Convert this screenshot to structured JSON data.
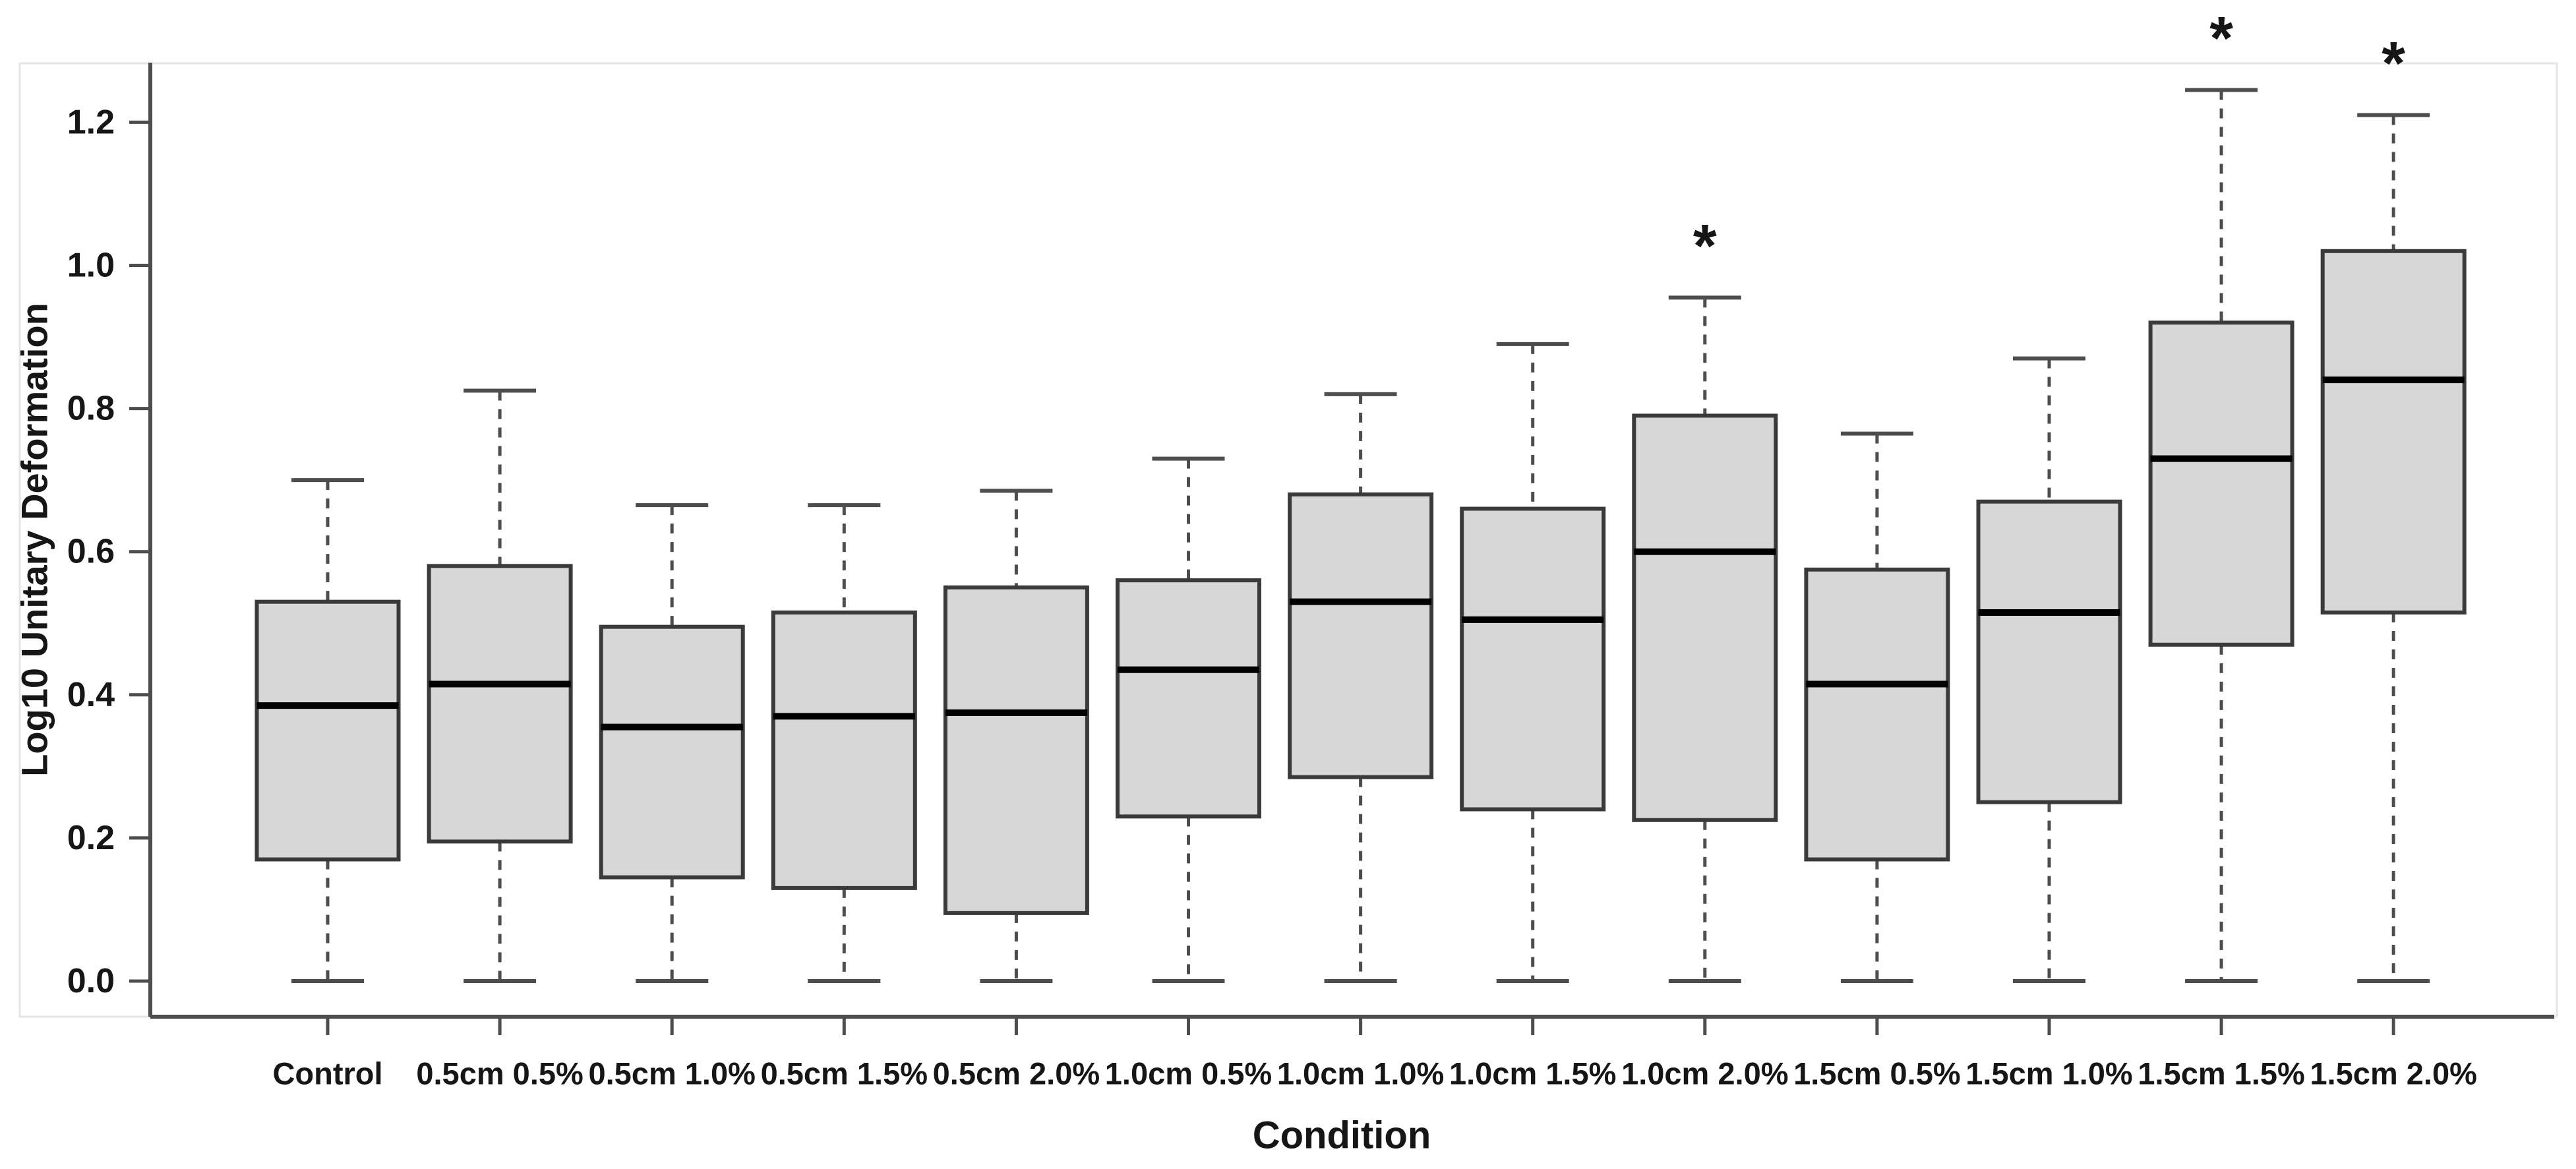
{
  "figure": {
    "background": "#ffffff"
  },
  "chart_data": {
    "type": "box",
    "title": "",
    "xlabel": "Condition",
    "ylabel": "Log10 Unitary Deformation",
    "ylim": [
      -0.05,
      1.29
    ],
    "yticks": [
      0.0,
      0.2,
      0.4,
      0.6,
      0.8,
      1.0,
      1.2
    ],
    "ytick_labels": [
      "0.0",
      "0.2",
      "0.4",
      "0.6",
      "0.8",
      "1.0",
      "1.2"
    ],
    "grid": false,
    "legend_position": "none",
    "significance_marker": "*",
    "categories": [
      "Control",
      "0.5cm 0.5%",
      "0.5cm 1.0%",
      "0.5cm 1.5%",
      "0.5cm 2.0%",
      "1.0cm 0.5%",
      "1.0cm 1.0%",
      "1.0cm 1.5%",
      "1.0cm 2.0%",
      "1.5cm 0.5%",
      "1.5cm 1.0%",
      "1.5cm 1.5%",
      "1.5cm 2.0%"
    ],
    "series": [
      {
        "name": "Control",
        "min": 0.0,
        "q1": 0.17,
        "median": 0.385,
        "q3": 0.53,
        "max": 0.7,
        "significant": false
      },
      {
        "name": "0.5cm 0.5%",
        "min": 0.0,
        "q1": 0.195,
        "median": 0.415,
        "q3": 0.58,
        "max": 0.825,
        "significant": false
      },
      {
        "name": "0.5cm 1.0%",
        "min": 0.0,
        "q1": 0.145,
        "median": 0.355,
        "q3": 0.495,
        "max": 0.665,
        "significant": false
      },
      {
        "name": "0.5cm 1.5%",
        "min": 0.0,
        "q1": 0.13,
        "median": 0.37,
        "q3": 0.515,
        "max": 0.665,
        "significant": false
      },
      {
        "name": "0.5cm 2.0%",
        "min": 0.0,
        "q1": 0.095,
        "median": 0.375,
        "q3": 0.55,
        "max": 0.685,
        "significant": false
      },
      {
        "name": "1.0cm 0.5%",
        "min": 0.0,
        "q1": 0.23,
        "median": 0.435,
        "q3": 0.56,
        "max": 0.73,
        "significant": false
      },
      {
        "name": "1.0cm 1.0%",
        "min": 0.0,
        "q1": 0.285,
        "median": 0.53,
        "q3": 0.68,
        "max": 0.82,
        "significant": false
      },
      {
        "name": "1.0cm 1.5%",
        "min": 0.0,
        "q1": 0.24,
        "median": 0.505,
        "q3": 0.66,
        "max": 0.89,
        "significant": false
      },
      {
        "name": "1.0cm 2.0%",
        "min": 0.0,
        "q1": 0.225,
        "median": 0.6,
        "q3": 0.79,
        "max": 0.955,
        "significant": true
      },
      {
        "name": "1.5cm 0.5%",
        "min": 0.0,
        "q1": 0.17,
        "median": 0.415,
        "q3": 0.575,
        "max": 0.765,
        "significant": false
      },
      {
        "name": "1.5cm 1.0%",
        "min": 0.0,
        "q1": 0.25,
        "median": 0.515,
        "q3": 0.67,
        "max": 0.87,
        "significant": false
      },
      {
        "name": "1.5cm 1.5%",
        "min": 0.0,
        "q1": 0.47,
        "median": 0.73,
        "q3": 0.92,
        "max": 1.245,
        "significant": true
      },
      {
        "name": "1.5cm 2.0%",
        "min": 0.0,
        "q1": 0.515,
        "median": 0.84,
        "q3": 1.02,
        "max": 1.21,
        "significant": true
      }
    ]
  },
  "colors": {
    "box_fill": "#d7d7d7",
    "box_border": "#3a3a3a",
    "median": "#000000",
    "whisker": "#4d4d4d",
    "axis": "#4d4d4d",
    "text": "#161616",
    "panel_border": "#e6e6e6"
  }
}
